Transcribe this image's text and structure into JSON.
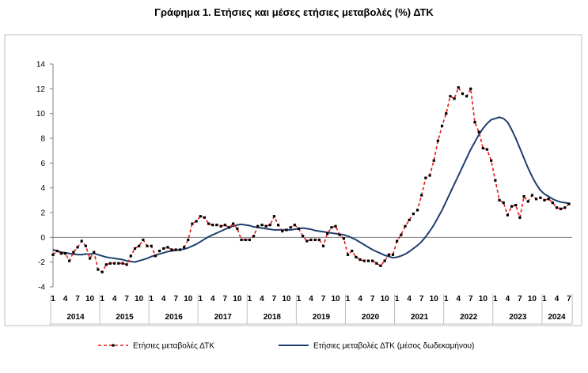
{
  "chart_data": {
    "type": "line",
    "title": "Γράφημα 1. Ετήσιες και μέσες ετήσιες μεταβολές (%) ΔΤΚ",
    "xlabel": "",
    "ylabel": "",
    "ylim": [
      -4,
      14
    ],
    "yticks": [
      -4,
      -2,
      0,
      2,
      4,
      6,
      8,
      10,
      12,
      14
    ],
    "month_labels": [
      "1",
      "4",
      "7",
      "10"
    ],
    "years": [
      "2014",
      "2015",
      "2016",
      "2017",
      "2018",
      "2019",
      "2020",
      "2021",
      "2022",
      "2023",
      "2024"
    ],
    "x_start": "2014-01",
    "x_end": "2024-07",
    "grid": false,
    "legend_position": "bottom",
    "series": [
      {
        "name": "Ετήσιες μεταβολές ΔΤΚ",
        "color": "#e31a1c",
        "style": "dashed-markers",
        "values": [
          -1.4,
          -1.1,
          -1.3,
          -1.3,
          -1.9,
          -1.2,
          -0.8,
          -0.3,
          -0.7,
          -1.7,
          -1.2,
          -2.6,
          -2.8,
          -2.2,
          -2.1,
          -2.1,
          -2.1,
          -2.1,
          -2.2,
          -1.5,
          -0.9,
          -0.7,
          -0.2,
          -0.7,
          -0.7,
          -1.5,
          -1.1,
          -0.9,
          -0.8,
          -1.0,
          -1.0,
          -1.0,
          -0.8,
          -0.2,
          1.1,
          1.3,
          1.7,
          1.6,
          1.1,
          1.0,
          1.0,
          0.9,
          1.0,
          0.8,
          1.1,
          0.7,
          -0.2,
          -0.2,
          -0.2,
          0.1,
          0.9,
          1.0,
          0.9,
          1.0,
          1.7,
          1.0,
          0.5,
          0.6,
          0.8,
          1.0,
          0.7,
          0.1,
          -0.3,
          -0.2,
          -0.2,
          -0.2,
          -0.7,
          0.3,
          0.8,
          0.9,
          0.2,
          -0.1,
          -1.4,
          -1.1,
          -1.6,
          -1.8,
          -1.9,
          -1.9,
          -1.9,
          -2.1,
          -2.3,
          -1.9,
          -1.4,
          -1.4,
          -0.3,
          0.2,
          0.9,
          1.4,
          1.9,
          2.2,
          3.4,
          4.8,
          5.0,
          6.2,
          7.8,
          9.0,
          10.0,
          11.4,
          11.2,
          12.1,
          11.6,
          11.4,
          12.0,
          9.3,
          8.5,
          7.2,
          7.1,
          6.2,
          4.6,
          3.0,
          2.8,
          1.8,
          2.5,
          2.6,
          1.6,
          3.3,
          2.9,
          3.4,
          3.1,
          3.2,
          3.0,
          3.1,
          2.8,
          2.4,
          2.3,
          2.4,
          2.7
        ]
      },
      {
        "name": "Ετήσιες μεταβολές ΔΤΚ (μέσος δωδεκαμήνου)",
        "color": "#1f3f6e",
        "style": "solid",
        "values": [
          -1.0,
          -1.1,
          -1.2,
          -1.25,
          -1.3,
          -1.35,
          -1.4,
          -1.4,
          -1.35,
          -1.35,
          -1.3,
          -1.4,
          -1.5,
          -1.6,
          -1.65,
          -1.7,
          -1.75,
          -1.8,
          -1.9,
          -1.95,
          -2.0,
          -1.9,
          -1.8,
          -1.7,
          -1.55,
          -1.45,
          -1.35,
          -1.25,
          -1.15,
          -1.1,
          -1.05,
          -1.0,
          -0.95,
          -0.85,
          -0.7,
          -0.55,
          -0.35,
          -0.15,
          0.05,
          0.2,
          0.35,
          0.5,
          0.65,
          0.8,
          0.9,
          1.0,
          1.05,
          1.0,
          0.95,
          0.85,
          0.8,
          0.75,
          0.7,
          0.65,
          0.6,
          0.6,
          0.6,
          0.6,
          0.6,
          0.65,
          0.7,
          0.75,
          0.7,
          0.65,
          0.55,
          0.5,
          0.45,
          0.4,
          0.35,
          0.3,
          0.25,
          0.2,
          0.1,
          -0.05,
          -0.2,
          -0.4,
          -0.6,
          -0.8,
          -1.0,
          -1.15,
          -1.3,
          -1.45,
          -1.55,
          -1.65,
          -1.6,
          -1.5,
          -1.35,
          -1.15,
          -0.9,
          -0.65,
          -0.35,
          0.05,
          0.5,
          1.0,
          1.6,
          2.2,
          2.9,
          3.6,
          4.3,
          5.0,
          5.7,
          6.4,
          7.1,
          7.7,
          8.3,
          8.8,
          9.2,
          9.5,
          9.6,
          9.7,
          9.6,
          9.3,
          8.7,
          8.0,
          7.2,
          6.4,
          5.6,
          4.9,
          4.3,
          3.8,
          3.5,
          3.3,
          3.1,
          2.95,
          2.85,
          2.8,
          2.75
        ]
      }
    ]
  }
}
